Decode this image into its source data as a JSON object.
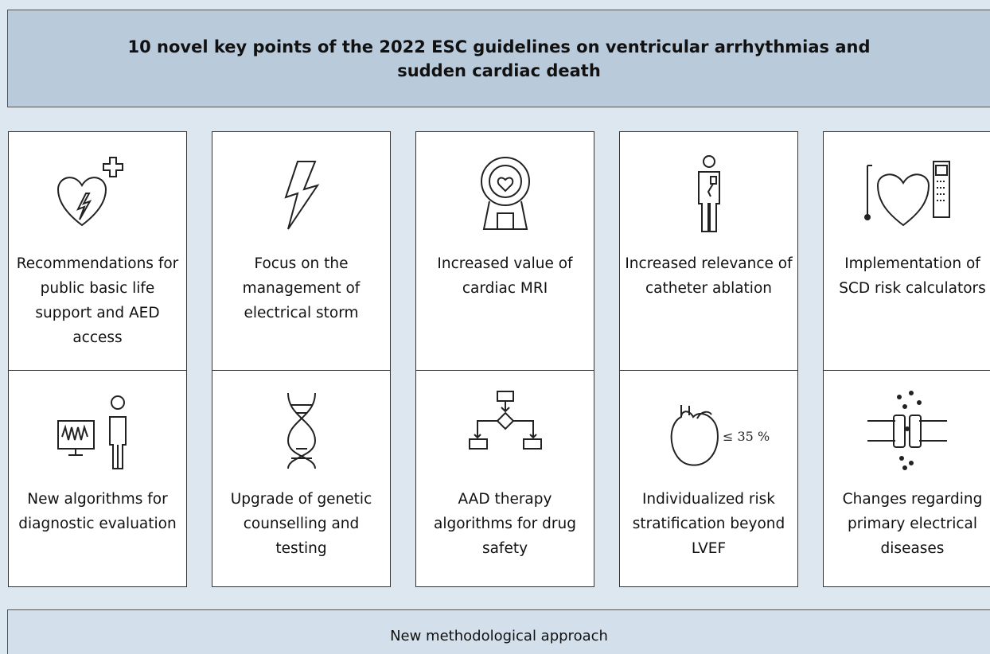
{
  "header": {
    "title": "10 novel key points of the 2022 ESC guidelines on ventricular arrhythmias and sudden cardiac death"
  },
  "cells": [
    {
      "label": "Recommendations for public basic life support and AED access"
    },
    {
      "label": "Focus on the management of electrical storm"
    },
    {
      "label": "Increased value of cardiac MRI"
    },
    {
      "label": "Increased relevance of catheter ablation"
    },
    {
      "label": "Implementation of SCD risk calculators"
    },
    {
      "label": "New algorithms for diagnostic evaluation"
    },
    {
      "label": "Upgrade of genetic counselling and testing"
    },
    {
      "label": "AAD therapy algorithms for drug safety"
    },
    {
      "label": "Individualized risk stratification beyond LVEF",
      "icon_text": "≤ 35 %"
    },
    {
      "label": "Changes regarding primary electrical diseases"
    }
  ],
  "footer": {
    "text": "New methodological approach"
  }
}
